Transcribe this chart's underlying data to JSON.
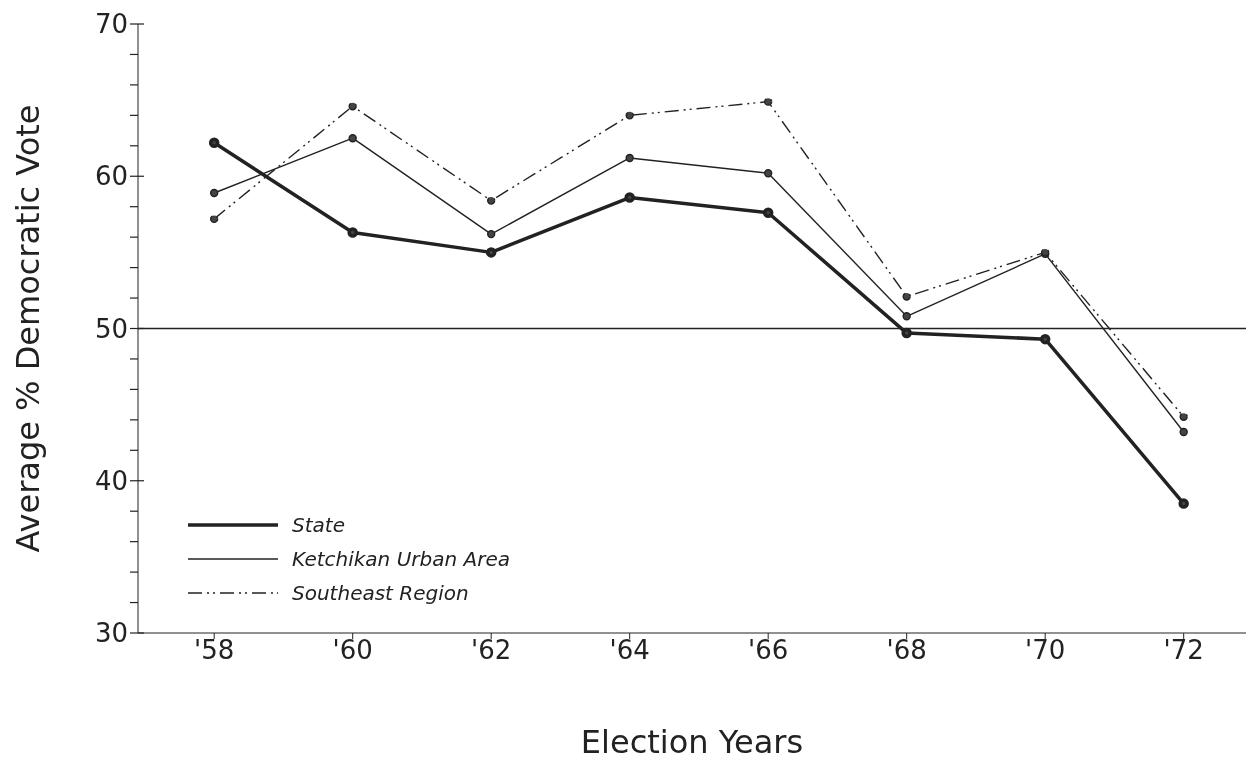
{
  "chart_data": {
    "type": "line",
    "xlabel": "Election Years",
    "ylabel": "Average % Democratic Vote",
    "categories": [
      "'58",
      "'60",
      "'62",
      "'64",
      "'66",
      "'68",
      "'70",
      "'72"
    ],
    "series": [
      {
        "name": "State",
        "color": "#222222",
        "line_style": "solid",
        "values": [
          62.2,
          56.3,
          55.0,
          58.6,
          57.6,
          49.7,
          49.3,
          38.5
        ]
      },
      {
        "name": "Ketchikan Urban Area",
        "color": "#222222",
        "line_style": "solid",
        "values": [
          58.9,
          62.5,
          56.2,
          61.2,
          60.2,
          50.8,
          54.9,
          43.2
        ]
      },
      {
        "name": "Southeast Region",
        "color": "#222222",
        "line_style": "dashed",
        "values": [
          57.2,
          64.6,
          58.4,
          64.0,
          64.9,
          52.1,
          55.0,
          44.2
        ]
      }
    ],
    "ylim": [
      30,
      70
    ],
    "yticks": [
      30,
      {
        "value": 32,
        "label": null
      },
      {
        "value": 34,
        "label": null
      },
      {
        "value": 36,
        "label": null
      },
      {
        "value": 38,
        "label": null
      },
      40,
      {
        "value": 42,
        "label": null
      },
      {
        "value": 44,
        "label": null
      },
      {
        "value": 46,
        "label": null
      },
      {
        "value": 48,
        "label": null
      },
      50,
      {
        "value": 52,
        "label": null
      },
      {
        "value": 54,
        "label": null
      },
      {
        "value": 56,
        "label": null
      },
      {
        "value": 58,
        "label": null
      },
      60,
      {
        "value": 62,
        "label": null
      },
      {
        "value": 64,
        "label": null
      },
      {
        "value": 66,
        "label": null
      },
      {
        "value": 68,
        "label": null
      },
      70
    ],
    "ref_lines": [
      {
        "axis": "y",
        "value": 50,
        "color": "#222222",
        "line_style": "solid"
      }
    ],
    "marker": "circle",
    "grid": false,
    "legend": "bottom left"
  }
}
